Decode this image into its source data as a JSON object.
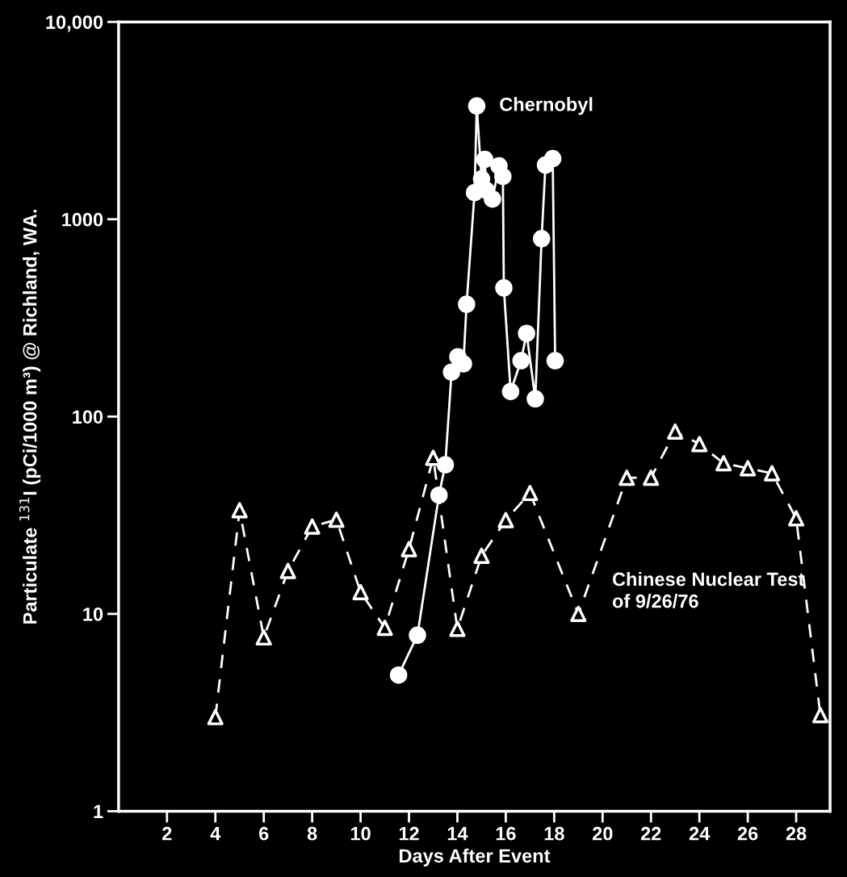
{
  "chart_data": {
    "type": "line",
    "xlabel": "Days After Event",
    "ylabel": "Particulate $^{131}$I (pCi/1000 m³) @ Richland, WA.",
    "log": "y",
    "xlim": [
      0,
      29.4
    ],
    "ylim": [
      1,
      10000
    ],
    "xticks": [
      2,
      4,
      6,
      8,
      10,
      12,
      14,
      16,
      18,
      20,
      22,
      24,
      26,
      28
    ],
    "yticks": [
      1,
      10,
      100,
      1000,
      {
        "value": 10000,
        "label": "10,000"
      }
    ],
    "grid": false,
    "legend": false,
    "series": [
      {
        "name": "Chernobyl",
        "color": "#ffffff",
        "marker": "circle",
        "line_style": "solid",
        "x": [
          11.57,
          12.35,
          13.24,
          13.5,
          13.76,
          14.02,
          14.25,
          14.38,
          14.71,
          14.8,
          15.0,
          15.13,
          15.2,
          15.45,
          15.72,
          15.88,
          15.92,
          16.2,
          16.63,
          16.86,
          17.22,
          17.48,
          17.64,
          17.94,
          18.04
        ],
        "values": [
          4.9,
          7.8,
          40,
          57,
          168,
          201,
          185,
          371,
          1365,
          3750,
          1600,
          2010,
          1400,
          1266,
          1864,
          1648,
          449,
          134,
          192,
          264,
          123,
          797,
          1883,
          2030,
          192
        ]
      },
      {
        "name": "Chinese Nuclear Test of 9/26/76",
        "color": "#ffffff",
        "marker": "triangle",
        "line_style": "dashed",
        "x": [
          4,
          5,
          6,
          7,
          8,
          9,
          10,
          11,
          12,
          13,
          14,
          15,
          16,
          17,
          19,
          21,
          22,
          23,
          24,
          25,
          26,
          27,
          28,
          29
        ],
        "values": [
          3,
          33.5,
          7.6,
          16.5,
          27.7,
          30,
          12.9,
          8.5,
          21.3,
          61.8,
          8.4,
          19.7,
          29.9,
          41,
          10,
          49,
          49,
          84,
          72.6,
          58,
          54.7,
          51.6,
          30.5,
          3.07
        ]
      }
    ]
  }
}
